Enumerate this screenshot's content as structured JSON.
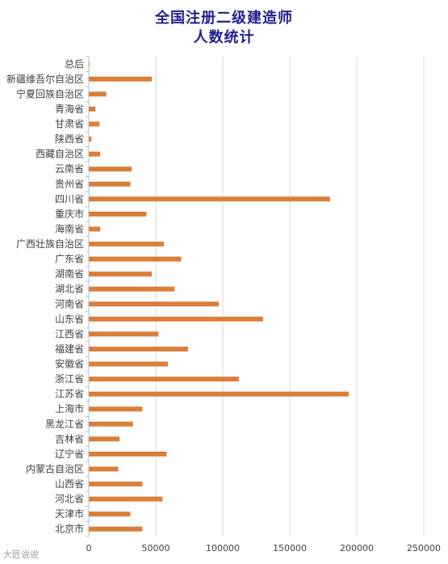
{
  "chart_data": {
    "type": "bar",
    "orientation": "horizontal",
    "title": "全国注册二级建造师",
    "subtitle": "人数统计",
    "xlim": [
      0,
      250000
    ],
    "xticks": [
      0,
      50000,
      100000,
      150000,
      200000,
      250000
    ],
    "grid": true,
    "categories": [
      "总后",
      "新疆维吾尔自治区",
      "宁夏回族自治区",
      "青海省",
      "甘肃省",
      "陕西省",
      "西藏自治区",
      "云南省",
      "贵州省",
      "四川省",
      "重庆市",
      "海南省",
      "广西壮族自治区",
      "广东省",
      "湖南省",
      "湖北省",
      "河南省",
      "山东省",
      "江西省",
      "福建省",
      "安徽省",
      "浙江省",
      "江苏省",
      "上海市",
      "黑龙江省",
      "吉林省",
      "辽宁省",
      "内蒙古自治区",
      "山西省",
      "河北省",
      "天津市",
      "北京市"
    ],
    "values": [
      500,
      47000,
      13000,
      5000,
      8000,
      2000,
      8500,
      32000,
      31000,
      180000,
      43000,
      8500,
      56000,
      69000,
      47000,
      64000,
      97000,
      130000,
      52000,
      74000,
      59000,
      112000,
      194000,
      40000,
      33000,
      23000,
      58000,
      22000,
      40000,
      55000,
      31000,
      40000
    ],
    "colors": {
      "bar": "#d97f3b",
      "title": "#1f1f8f"
    }
  },
  "watermark": "大匠说说"
}
